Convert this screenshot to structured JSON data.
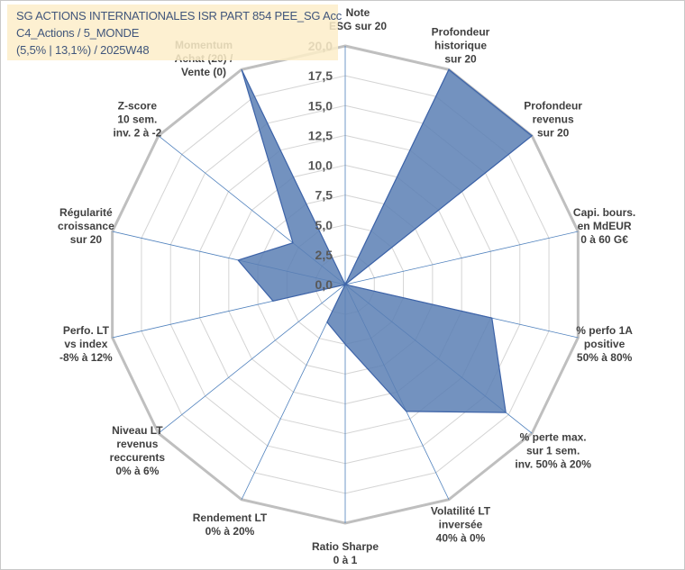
{
  "chart_data": {
    "type": "radar",
    "title_lines": [
      "SG ACTIONS INTERNATIONALES ISR PART 854 PEE_SG Acc",
      "C4_Actions / 5_MONDE",
      "(5,5% | 13,1%) / 2025W48"
    ],
    "categories": [
      "Note ESG sur 20",
      "Profondeur historique sur 20",
      "Profondeur revenus sur 20",
      "Capi. bours. en MdEUR 0 à 60 G€",
      "% perfo 1A positive 50% à 80%",
      "% perte max. sur 1 sem. inv. 50% à 20%",
      "Volatilité LT inversée 40% à 0%",
      "Ratio Sharpe 0 à 1",
      "Rendement LT 0% à 20%",
      "Niveau LT revenus reccurents 0% à 6%",
      "Perfo. LT vs index -8% à 12%",
      "Régularité croissance sur 20",
      "Z-score 10 sem. inv. 2 à -2",
      "Momentum Achat (20) / Vente (0)"
    ],
    "category_label_lines": [
      [
        "Note",
        "ESG sur 20"
      ],
      [
        "Profondeur",
        "historique",
        "sur 20"
      ],
      [
        "Profondeur",
        "revenus",
        "sur 20"
      ],
      [
        "Capi. bours.",
        "en MdEUR",
        "0 à 60 G€"
      ],
      [
        "% perfo 1A",
        "positive",
        "50% à 80%"
      ],
      [
        "% perte max.",
        "sur 1 sem.",
        "inv. 50% à 20%"
      ],
      [
        "Volatilité LT",
        "inversée",
        "40% à 0%"
      ],
      [
        "Ratio Sharpe",
        "0 à 1"
      ],
      [
        "Rendement LT",
        "0% à 20%"
      ],
      [
        "Niveau LT",
        "revenus",
        "reccurents",
        "0% à 6%"
      ],
      [
        "Perfo. LT",
        "vs index",
        "-8% à 12%"
      ],
      [
        "Régularité",
        "croissance",
        "sur 20"
      ],
      [
        "Z-score",
        "10 sem.",
        "inv. 2 à -2"
      ],
      [
        "Momentum",
        "Achat (20) /",
        "Vente (0)"
      ]
    ],
    "series": [
      {
        "values": [
          0,
          20,
          20,
          0,
          12.6,
          17.2,
          11.8,
          5,
          3.5,
          0,
          6.2,
          9.2,
          5.6,
          20
        ]
      }
    ],
    "rmin": 0,
    "rmax": 20,
    "tick_step": 2.5,
    "tick_labels": [
      "0,0",
      "2,5",
      "5,0",
      "7,5",
      "10,0",
      "12,5",
      "15,0",
      "17,5",
      "20,0"
    ],
    "grid": true,
    "legend": "none",
    "colors": {
      "fill": "#5b7fb4",
      "stroke": "#3d63a8",
      "grid": "#d4d4d4",
      "outer_ring": "#bfbfbf",
      "spoke": "#4f81bd",
      "title_bg": "#fdeec9"
    }
  }
}
